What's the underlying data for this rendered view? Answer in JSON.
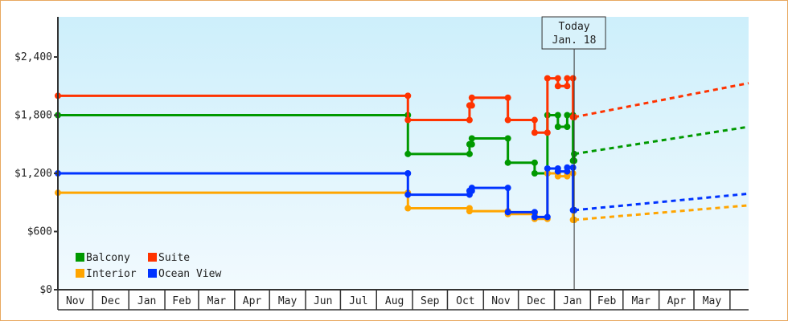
{
  "chart_data": {
    "type": "line",
    "step": true,
    "x_range": [
      "2023-11-01",
      "2025-06-17"
    ],
    "ylim": [
      0,
      2800
    ],
    "y_ticks": [
      0,
      600,
      1200,
      1800,
      2400
    ],
    "y_tick_labels": [
      "$0",
      "$600",
      "$1,200",
      "$1,800",
      "$2,400"
    ],
    "x_tick_labels": [
      "Nov",
      "Dec",
      "Jan",
      "Feb",
      "Mar",
      "Apr",
      "May",
      "Jun",
      "Jul",
      "Aug",
      "Sep",
      "Oct",
      "Nov",
      "Dec",
      "Jan",
      "Feb",
      "Mar",
      "Apr",
      "May"
    ],
    "x_month_starts": [
      "2023-11-01",
      "2023-12-01",
      "2024-01-01",
      "2024-02-01",
      "2024-03-01",
      "2024-04-01",
      "2024-05-01",
      "2024-06-01",
      "2024-07-01",
      "2024-08-01",
      "2024-09-01",
      "2024-10-01",
      "2024-11-01",
      "2024-12-01",
      "2025-01-01",
      "2025-02-01",
      "2025-03-01",
      "2025-04-01",
      "2025-05-01",
      "2025-06-01"
    ],
    "today": {
      "date": "2025-01-18",
      "label1": "Today",
      "label2": "Jan. 18"
    },
    "legend_placement": "bottom-left",
    "series": [
      {
        "name": "Balcony",
        "color": "#009900",
        "points": [
          [
            "2023-11-01",
            1800
          ],
          [
            "2024-08-28",
            1400
          ],
          [
            "2024-10-20",
            1500
          ],
          [
            "2024-10-22",
            1560
          ],
          [
            "2024-11-22",
            1310
          ],
          [
            "2024-12-15",
            1200
          ],
          [
            "2024-12-26",
            1800
          ],
          [
            "2025-01-04",
            1680
          ],
          [
            "2025-01-12",
            1800
          ],
          [
            "2025-01-17",
            1330
          ],
          [
            "2025-01-18",
            1400
          ]
        ],
        "projection": [
          [
            "2025-01-18",
            1400
          ],
          [
            "2025-06-17",
            1680
          ]
        ]
      },
      {
        "name": "Suite",
        "color": "#ff3300",
        "points": [
          [
            "2023-11-01",
            2000
          ],
          [
            "2024-08-28",
            1750
          ],
          [
            "2024-10-20",
            1900
          ],
          [
            "2024-10-22",
            1980
          ],
          [
            "2024-11-22",
            1750
          ],
          [
            "2024-12-15",
            1620
          ],
          [
            "2024-12-26",
            2180
          ],
          [
            "2025-01-04",
            2100
          ],
          [
            "2025-01-12",
            2180
          ],
          [
            "2025-01-17",
            1780
          ],
          [
            "2025-01-18",
            1780
          ]
        ],
        "projection": [
          [
            "2025-01-18",
            1780
          ],
          [
            "2025-06-17",
            2130
          ]
        ]
      },
      {
        "name": "Interior",
        "color": "#ffa500",
        "points": [
          [
            "2023-11-01",
            1000
          ],
          [
            "2024-08-28",
            840
          ],
          [
            "2024-10-20",
            810
          ],
          [
            "2024-11-22",
            780
          ],
          [
            "2024-12-15",
            730
          ],
          [
            "2024-12-26",
            1200
          ],
          [
            "2025-01-04",
            1170
          ],
          [
            "2025-01-12",
            1200
          ],
          [
            "2025-01-17",
            720
          ],
          [
            "2025-01-18",
            720
          ]
        ],
        "projection": [
          [
            "2025-01-18",
            720
          ],
          [
            "2025-06-17",
            870
          ]
        ]
      },
      {
        "name": "Ocean View",
        "color": "#0033ff",
        "points": [
          [
            "2023-11-01",
            1200
          ],
          [
            "2024-08-28",
            980
          ],
          [
            "2024-10-20",
            1020
          ],
          [
            "2024-10-22",
            1050
          ],
          [
            "2024-11-22",
            800
          ],
          [
            "2024-12-15",
            750
          ],
          [
            "2024-12-26",
            1250
          ],
          [
            "2025-01-04",
            1220
          ],
          [
            "2025-01-12",
            1260
          ],
          [
            "2025-01-17",
            820
          ],
          [
            "2025-01-18",
            820
          ]
        ],
        "projection": [
          [
            "2025-01-18",
            820
          ],
          [
            "2025-06-17",
            990
          ]
        ]
      }
    ]
  }
}
